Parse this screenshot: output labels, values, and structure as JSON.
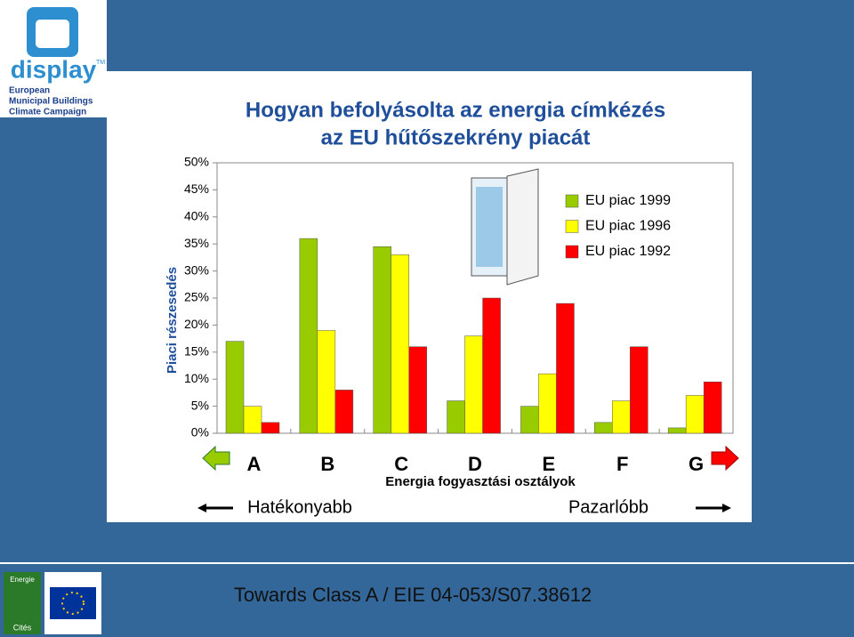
{
  "logo": {
    "name": "display",
    "tm": "TM",
    "lines": [
      "European",
      "Municipal Buildings",
      "Climate Campaign"
    ]
  },
  "footer": {
    "text": "Towards Class A / EIE 04-053/S07.38612",
    "logo_top": "Energie",
    "logo_bottom": "Cités"
  },
  "chart_data": {
    "type": "bar",
    "title": [
      "Hogyan befolyásolta az energia címkézés",
      "az EU hűtőszekrény piacát"
    ],
    "ylabel": "Piaci részesedés",
    "xlabel": "Energia fogyasztási osztályok",
    "annotations": [
      "Hatékonyabb",
      "Pazarlóbb"
    ],
    "categories": [
      "A",
      "B",
      "C",
      "D",
      "E",
      "F",
      "G"
    ],
    "series": [
      {
        "name": "EU piac 1999",
        "color": "#99cc00",
        "values": [
          17,
          36,
          34.5,
          6,
          5,
          2,
          1
        ]
      },
      {
        "name": "EU piac 1996",
        "color": "#ffff00",
        "values": [
          5,
          19,
          33,
          18,
          11,
          6,
          7
        ]
      },
      {
        "name": "EU piac 1992",
        "color": "#ff0000",
        "values": [
          2,
          8,
          16,
          25,
          24,
          16,
          9.5
        ]
      }
    ],
    "ylim": [
      0,
      50
    ],
    "yticks": [
      {
        "value": 0,
        "label": "0%"
      },
      {
        "value": 5,
        "label": "5%"
      },
      {
        "value": 10,
        "label": "10%"
      },
      {
        "value": 15,
        "label": "15%"
      },
      {
        "value": 20,
        "label": "20%"
      },
      {
        "value": 25,
        "label": "25%"
      },
      {
        "value": 30,
        "label": "30%"
      },
      {
        "value": 35,
        "label": "35%"
      },
      {
        "value": 40,
        "label": "40%"
      },
      {
        "value": 45,
        "label": "45%"
      },
      {
        "value": 50,
        "label": "50%"
      }
    ],
    "legend": "top-right"
  }
}
